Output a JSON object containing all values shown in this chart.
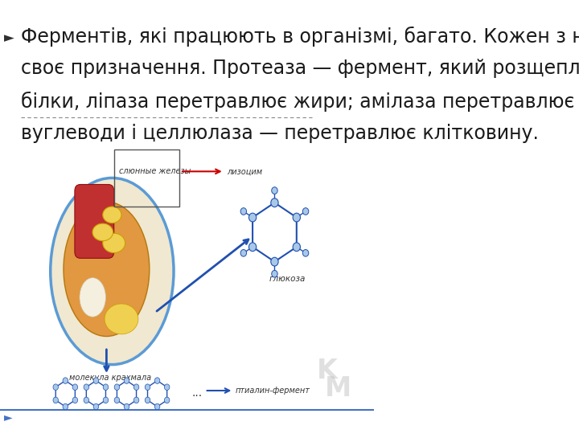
{
  "background_color": "#ffffff",
  "bullet_color": "#1a1a1a",
  "text_line1": "Ферментів, які працюють в організмі, багато. Кожен з них має",
  "text_line2": "своє призначення. Протеаза — фермент, який розщеплює",
  "text_line3": "білки, ліпаза перетравлює жири; амілаза перетравлює",
  "text_line4": "вуглеводи і целлюлаза — перетравлює клітковину.",
  "bullet_marker": "►",
  "slide_bg": "#ffffff",
  "bottom_line_color": "#4472c4",
  "bottom_bullet_color": "#4472c4",
  "font_size": 18,
  "font_color": "#1a1a1a",
  "salivary_glands_label": "слюнные железы",
  "lysozyme_label": "лизоцим",
  "starch_label": "молекула крахмала",
  "glucose_label": "глюкоза",
  "ptyalin_label": "птиалин-фермент"
}
